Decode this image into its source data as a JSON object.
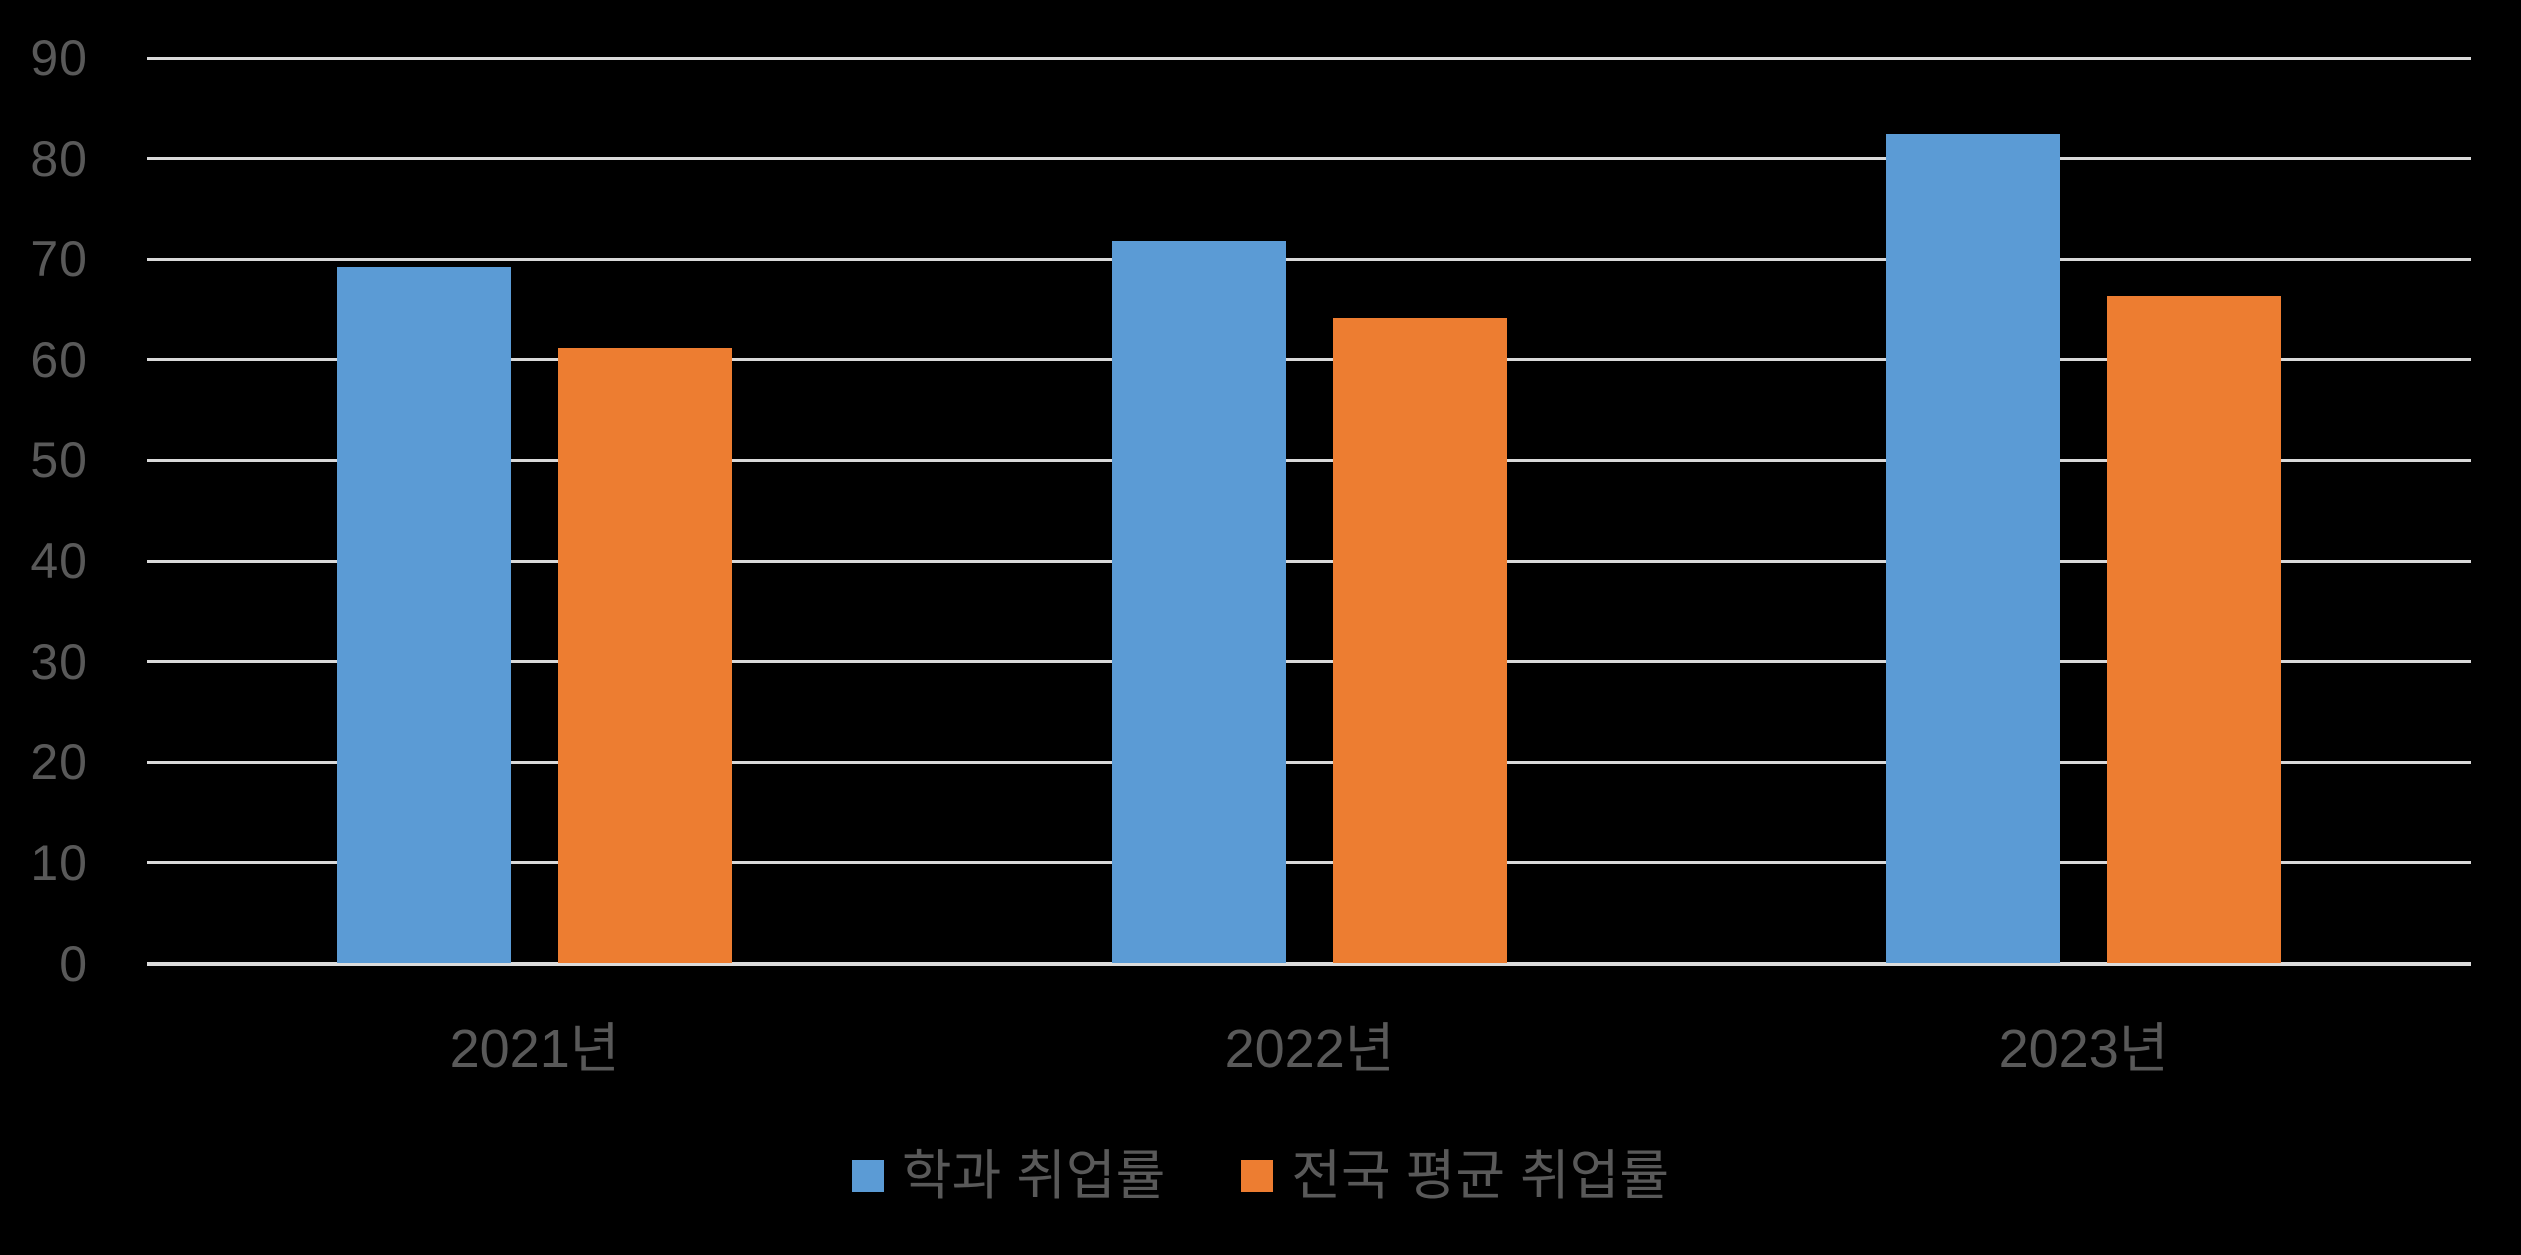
{
  "chart_data": {
    "type": "bar",
    "title": "",
    "categories": [
      "2021년",
      "2022년",
      "2023년"
    ],
    "series": [
      {
        "name": "학과 취업률",
        "color": "#5B9BD5",
        "values": [
          69.2,
          71.8,
          82.4
        ]
      },
      {
        "name": "전국 평균 취업률",
        "color": "#ED7D31",
        "values": [
          61.2,
          64.2,
          66.3
        ]
      }
    ],
    "y_axis": {
      "min": 0,
      "max": 90,
      "step": 10,
      "tick_labels": [
        "0",
        "10",
        "20",
        "30",
        "40",
        "50",
        "60",
        "70",
        "80",
        "90"
      ]
    },
    "grid": true,
    "legend_position": "bottom",
    "colors": {
      "background": "#000000",
      "text": "#595959",
      "gridline": "#D9D9D9",
      "axis_line": "#DCDCDC",
      "series1": "#5B9BD5",
      "series2": "#ED7D31"
    }
  }
}
